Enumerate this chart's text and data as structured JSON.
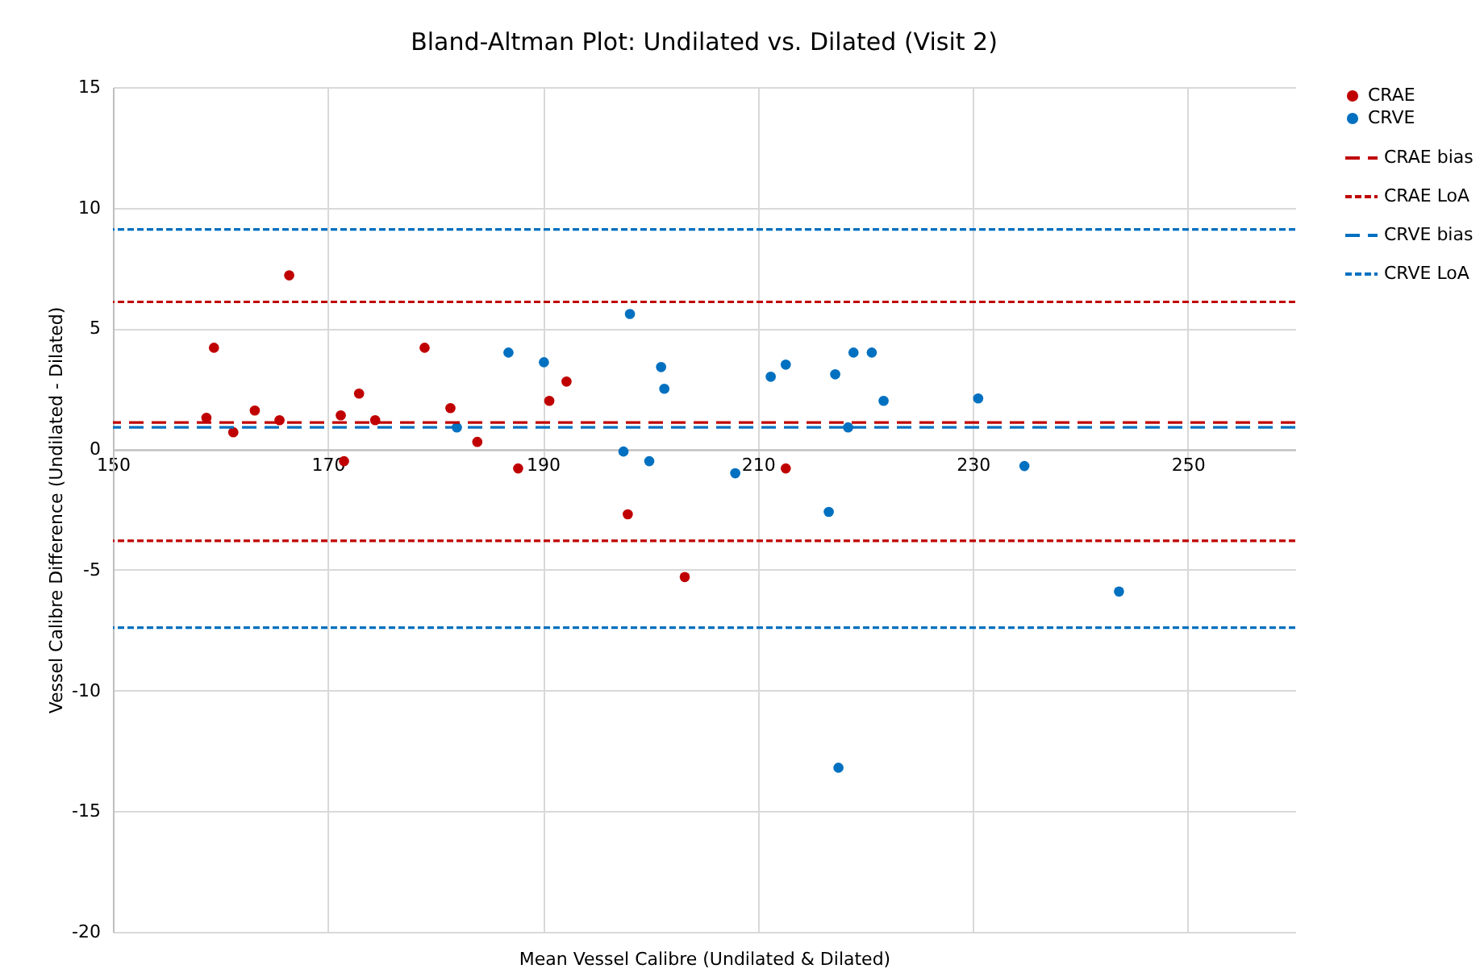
{
  "chart_data": {
    "type": "scatter",
    "title": "Bland-Altman Plot: Undilated vs. Dilated (Visit 2)",
    "xlabel": "Mean Vessel Calibre (Undilated & Dilated)",
    "ylabel": "Vessel Calibre Difference (Undilated - Dilated)",
    "series": [
      {
        "name": "CRAE",
        "color": "#c00000",
        "x": [
          158.7,
          159.4,
          161.2,
          163.2,
          165.5,
          166.4,
          171.2,
          171.5,
          172.9,
          174.4,
          179.0,
          181.4,
          183.9,
          187.7,
          190.6,
          192.2,
          197.9,
          203.2,
          212.6
        ],
        "values": [
          1.3,
          4.2,
          0.7,
          1.6,
          1.2,
          7.2,
          1.4,
          -0.5,
          2.3,
          1.2,
          4.2,
          1.7,
          0.3,
          -0.8,
          2.0,
          2.8,
          -2.7,
          -5.3,
          -0.8
        ]
      },
      {
        "name": "CRVE",
        "color": "#0070c0",
        "x": [
          182.0,
          186.8,
          190.1,
          197.5,
          198.1,
          199.9,
          201.0,
          201.3,
          207.9,
          211.2,
          212.6,
          216.6,
          217.2,
          217.5,
          218.4,
          218.9,
          220.6,
          221.7,
          230.5,
          234.8,
          243.6
        ],
        "values": [
          0.9,
          4.0,
          3.6,
          -0.1,
          5.6,
          -0.5,
          3.4,
          2.5,
          -1.0,
          3.0,
          3.5,
          -2.6,
          3.1,
          -13.2,
          0.9,
          4.0,
          4.0,
          2.0,
          2.1,
          -0.7,
          -5.9
        ]
      }
    ],
    "ref_lines": [
      {
        "axis": "y",
        "value": 1.1,
        "label": "CRAE bias",
        "color": "#c00000",
        "line_style": "dashed"
      },
      {
        "axis": "y",
        "value": 6.1,
        "label": "CRAE LoA",
        "color": "#c00000",
        "line_style": "dotted"
      },
      {
        "axis": "y",
        "value": -3.8,
        "color": "#c00000",
        "line_style": "dotted"
      },
      {
        "axis": "y",
        "value": 0.9,
        "label": "CRVE bias",
        "color": "#0070c0",
        "line_style": "dashed"
      },
      {
        "axis": "y",
        "value": 9.1,
        "label": "CRVE LoA",
        "color": "#0070c0",
        "line_style": "dotted"
      },
      {
        "axis": "y",
        "value": -7.4,
        "color": "#0070c0",
        "line_style": "dotted"
      }
    ],
    "xlim": [
      150,
      260
    ],
    "xticks": [
      150,
      170,
      190,
      210,
      230,
      250
    ],
    "ylim": [
      -20,
      15
    ],
    "yticks": [
      -20,
      -15,
      -10,
      -5,
      0,
      5,
      10,
      15
    ],
    "grid": true,
    "legend": "right",
    "marker": "circle"
  }
}
